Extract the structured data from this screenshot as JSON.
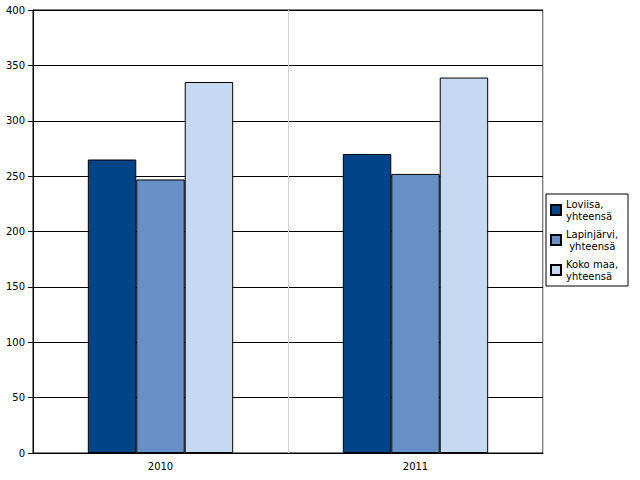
{
  "chart_data": {
    "type": "bar",
    "categories": [
      "2010",
      "2011"
    ],
    "series": [
      {
        "name": "Loviisa, yhteensä",
        "color": "#004488",
        "values": [
          265,
          270
        ]
      },
      {
        "name": "Lapinjärvi, yhteensä",
        "color": "#6690c6",
        "values": [
          247,
          252
        ]
      },
      {
        "name": "Koko maa, yhteensä",
        "color": "#c6d9f2",
        "values": [
          335,
          339
        ]
      }
    ],
    "ylim": [
      0,
      400
    ],
    "yticks": [
      0,
      50,
      100,
      150,
      200,
      250,
      300,
      350,
      400
    ],
    "grid": true,
    "legend": "right"
  }
}
